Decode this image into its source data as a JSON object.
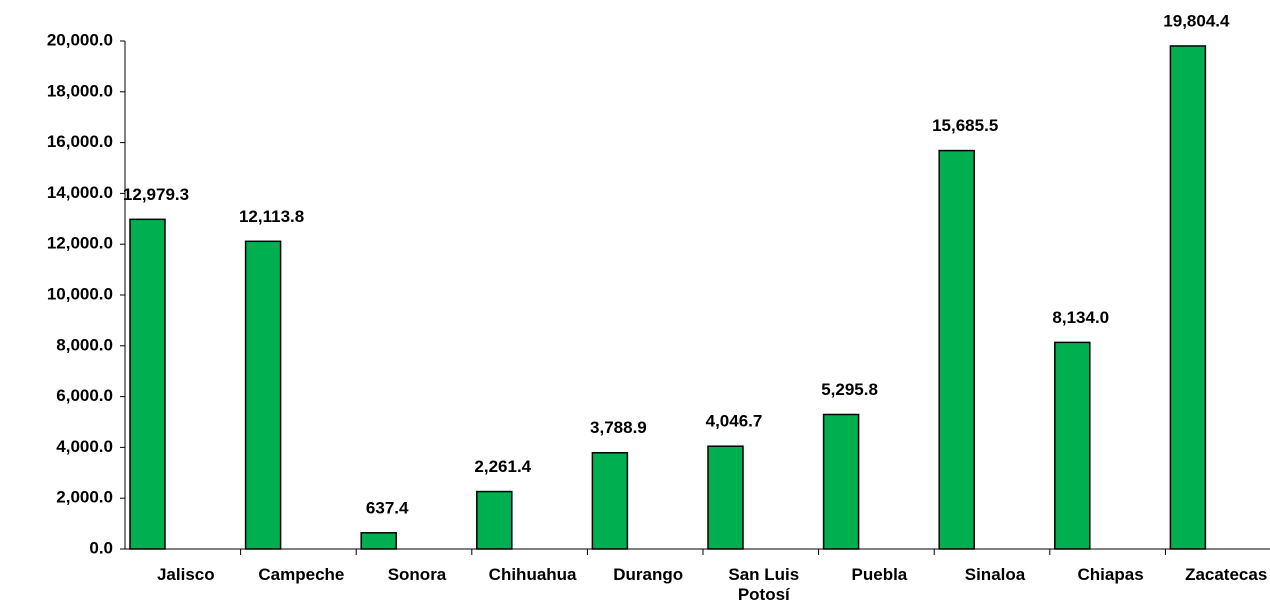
{
  "chart_data": {
    "type": "bar",
    "categories": [
      "Jalisco",
      "Campeche",
      "Sonora",
      "Chihuahua",
      "Durango",
      "San Luis Potosí",
      "Puebla",
      "Sinaloa",
      "Chiapas",
      "Zacatecas"
    ],
    "values": [
      12979.3,
      12113.8,
      637.4,
      2261.4,
      3788.9,
      4046.7,
      5295.8,
      15685.5,
      8134.0,
      19804.4
    ],
    "value_labels": [
      "12,979.3",
      "12,113.8",
      "637.4",
      "2,261.4",
      "3,788.9",
      "4,046.7",
      "5,295.8",
      "15,685.5",
      "8,134.0",
      "19,804.4"
    ],
    "color": "#00b050",
    "ylim": [
      0,
      20000
    ],
    "yticks": [
      {
        "value": 0,
        "label": "0.0"
      },
      {
        "value": 2000,
        "label": "2,000.0"
      },
      {
        "value": 4000,
        "label": "4,000.0"
      },
      {
        "value": 6000,
        "label": "6,000.0"
      },
      {
        "value": 8000,
        "label": "8,000.0"
      },
      {
        "value": 10000,
        "label": "10,000.0"
      },
      {
        "value": 12000,
        "label": "12,000.0"
      },
      {
        "value": 14000,
        "label": "14,000.0"
      },
      {
        "value": 16000,
        "label": "16,000.0"
      },
      {
        "value": 18000,
        "label": "18,000.0"
      },
      {
        "value": 20000,
        "label": "20,000.0"
      }
    ],
    "grid": false
  }
}
